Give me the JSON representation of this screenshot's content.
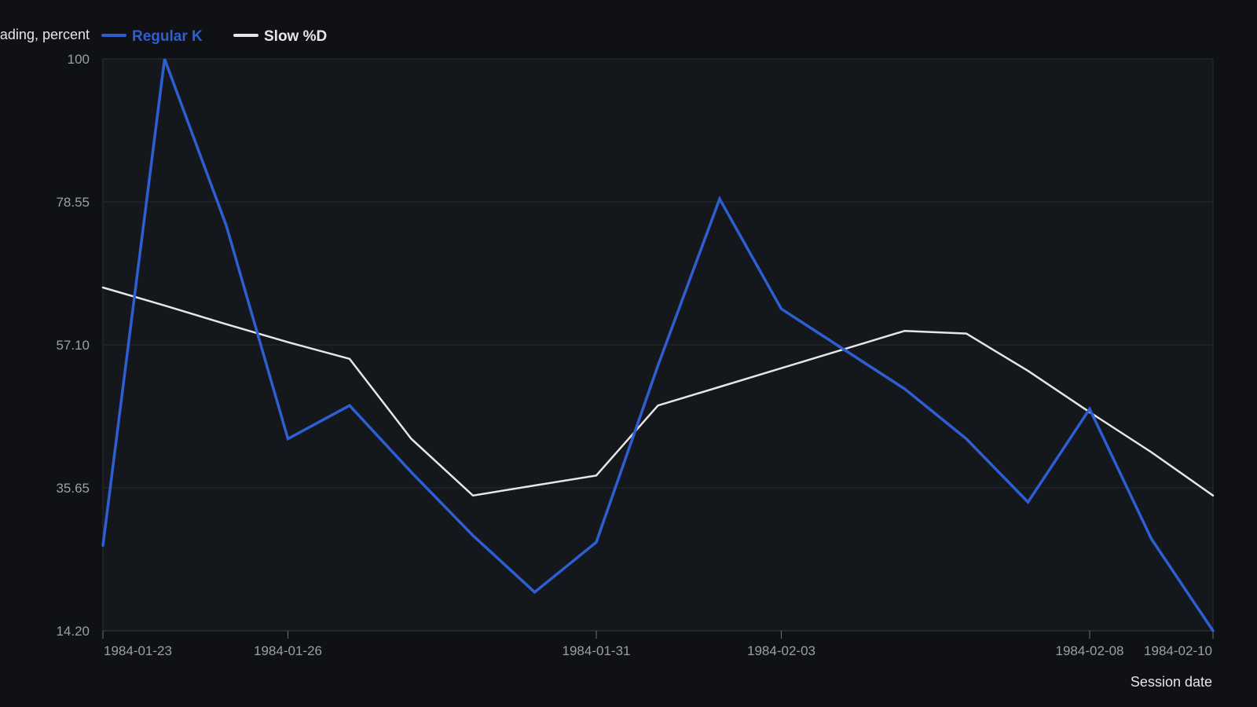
{
  "chart_data": {
    "type": "line",
    "xlabel": "Session date",
    "ylabel": "Oscillator reading, percent",
    "ylim": [
      14.2,
      100
    ],
    "yticks": [
      "14.20",
      "35.65",
      "57.10",
      "78.55",
      "100"
    ],
    "xlim": [
      "1984-01-23",
      "1984-02-10"
    ],
    "xticks": [
      "1984-01-23",
      "1984-01-26",
      "1984-01-31",
      "1984-02-03",
      "1984-02-08",
      "1984-02-10"
    ],
    "grid": true,
    "legend_position": "top-left",
    "series": [
      {
        "name": "Regular K",
        "color": "#2d5fd3",
        "points": [
          {
            "x": "1984-01-23",
            "y": 27.0
          },
          {
            "x": "1984-01-24",
            "y": 100.0
          },
          {
            "x": "1984-01-25",
            "y": 75.0
          },
          {
            "x": "1984-01-26",
            "y": 43.0
          },
          {
            "x": "1984-01-27",
            "y": 48.0
          },
          {
            "x": "1984-01-28",
            "y": 38.0
          },
          {
            "x": "1984-01-29",
            "y": 28.5
          },
          {
            "x": "1984-01-30",
            "y": 20.0
          },
          {
            "x": "1984-01-31",
            "y": 27.5
          },
          {
            "x": "1984-02-01",
            "y": 54.0
          },
          {
            "x": "1984-02-02",
            "y": 79.0
          },
          {
            "x": "1984-02-03",
            "y": 62.5
          },
          {
            "x": "1984-02-04",
            "y": 56.5
          },
          {
            "x": "1984-02-05",
            "y": 50.5
          },
          {
            "x": "1984-02-06",
            "y": 43.0
          },
          {
            "x": "1984-02-07",
            "y": 33.5
          },
          {
            "x": "1984-02-08",
            "y": 47.5
          },
          {
            "x": "1984-02-09",
            "y": 28.0
          },
          {
            "x": "1984-02-10",
            "y": 14.2
          }
        ]
      },
      {
        "name": "Slow %D",
        "color": "#e6e6e6",
        "points": [
          {
            "x": "1984-01-23",
            "y": 65.7
          },
          {
            "x": "1984-01-24",
            "y": 63.0
          },
          {
            "x": "1984-01-25",
            "y": 60.2
          },
          {
            "x": "1984-01-26",
            "y": 57.5
          },
          {
            "x": "1984-01-27",
            "y": 55.0
          },
          {
            "x": "1984-01-28",
            "y": 43.0
          },
          {
            "x": "1984-01-29",
            "y": 34.5
          },
          {
            "x": "1984-01-30",
            "y": 36.0
          },
          {
            "x": "1984-01-31",
            "y": 37.5
          },
          {
            "x": "1984-02-01",
            "y": 48.0
          },
          {
            "x": "1984-02-02",
            "y": 50.8
          },
          {
            "x": "1984-02-03",
            "y": 53.6
          },
          {
            "x": "1984-02-04",
            "y": 56.4
          },
          {
            "x": "1984-02-05",
            "y": 59.2
          },
          {
            "x": "1984-02-06",
            "y": 58.8
          },
          {
            "x": "1984-02-07",
            "y": 53.2
          },
          {
            "x": "1984-02-08",
            "y": 47.0
          },
          {
            "x": "1984-02-09",
            "y": 41.0
          },
          {
            "x": "1984-02-10",
            "y": 34.5
          }
        ]
      }
    ]
  }
}
